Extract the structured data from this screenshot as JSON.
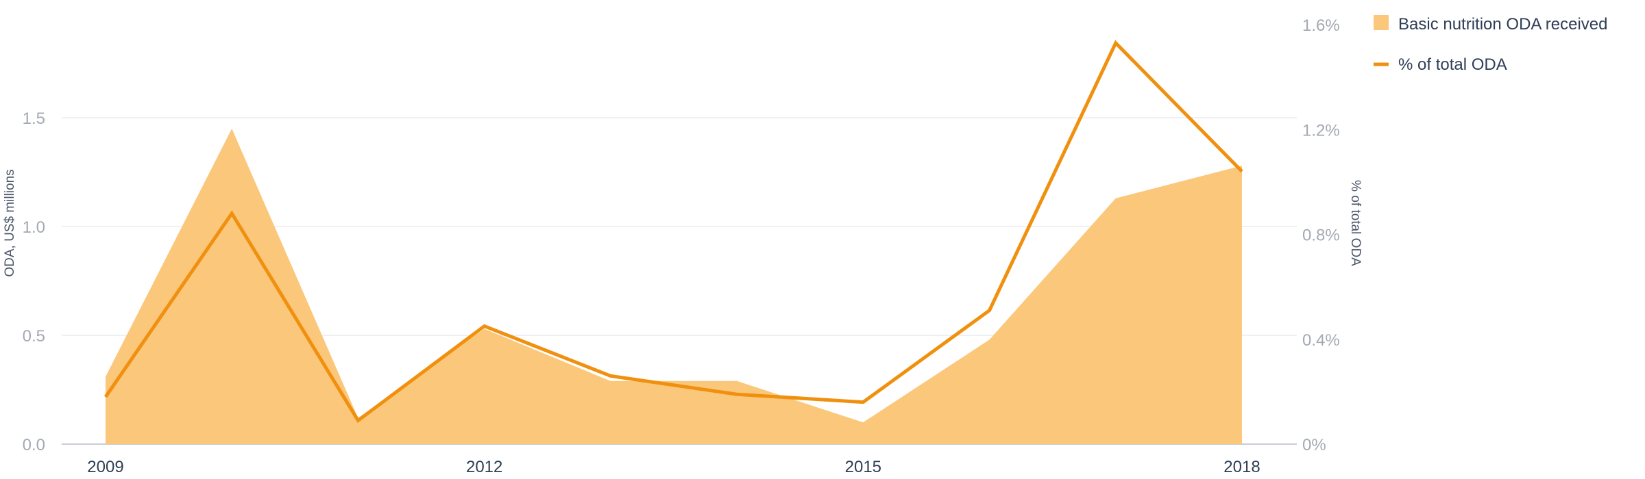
{
  "chart_data": {
    "type": "area",
    "x": [
      2009,
      2010,
      2011,
      2012,
      2013,
      2014,
      2015,
      2016,
      2017,
      2018
    ],
    "xticks": [
      "2009",
      "2012",
      "2015",
      "2018"
    ],
    "series": [
      {
        "name": "Basic nutrition ODA received",
        "type": "area",
        "axis": "left",
        "color": "#fbc77a",
        "values": [
          0.31,
          1.45,
          0.12,
          0.53,
          0.29,
          0.29,
          0.1,
          0.48,
          1.13,
          1.28
        ]
      },
      {
        "name": "% of total ODA",
        "type": "line",
        "axis": "right",
        "color": "#f0900e",
        "values": [
          0.18,
          0.88,
          0.09,
          0.45,
          0.26,
          0.19,
          0.16,
          0.51,
          1.53,
          1.04
        ]
      }
    ],
    "y_left": {
      "label": "ODA, US$ millions",
      "lim": [
        0,
        1.9
      ],
      "ticks": [
        0,
        0.5,
        1,
        1.5
      ],
      "tick_labels": [
        "0.0",
        "0.5",
        "1.0",
        "1.5"
      ]
    },
    "y_right": {
      "label": "% of total ODA",
      "lim": [
        0,
        1.6
      ],
      "ticks": [
        0,
        0.4,
        0.8,
        1.2,
        1.6
      ],
      "tick_labels": [
        "0%",
        "0.4%",
        "0.8%",
        "1.2%",
        "1.6%"
      ]
    },
    "grid": true,
    "legend": "top-right"
  }
}
